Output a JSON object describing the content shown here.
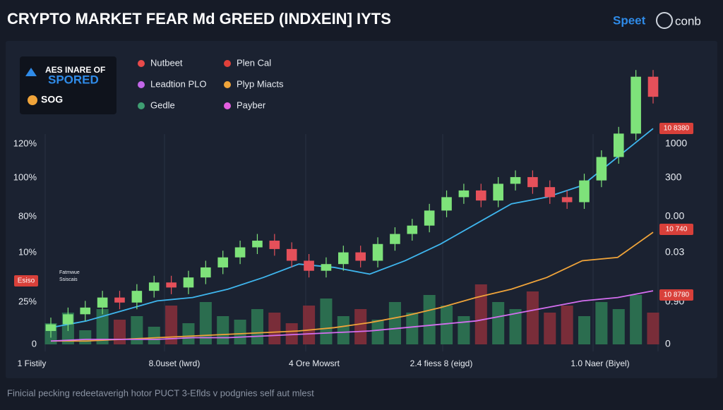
{
  "chart_data": {
    "type": "candlestick",
    "title": "CRYPTO MARKET FEAR Md GREED (INDXEIN] IYTS",
    "logo": [
      "Speet",
      "conb"
    ],
    "badge_panel": [
      "AES INARE OF",
      "SPORED",
      "SOG"
    ],
    "legend": [
      {
        "name": "Nutbeet",
        "color": "#e84a4a"
      },
      {
        "name": "Plen Cal",
        "color": "#e0403a"
      },
      {
        "name": "Leadtion PLO",
        "color": "#c266e8"
      },
      {
        "name": "Plyp Miacts",
        "color": "#f0a43a"
      },
      {
        "name": "Gedle",
        "color": "#3f9e72"
      },
      {
        "name": "Payber",
        "color": "#e45ee0"
      }
    ],
    "left_axis_labels": [
      "120%",
      "100%",
      "80%",
      "10%",
      "25%",
      "0"
    ],
    "right_axis_labels": [
      "1000",
      "300",
      "0.00",
      "0.03",
      "0.90",
      "0"
    ],
    "tags": [
      "Esiso",
      "10 8380",
      "10 740",
      "10 8780"
    ],
    "ticker_note": [
      "Fatmwue",
      "Ssiscais"
    ],
    "x_labels": [
      "1 Fistily",
      "8.0uset (lwrd)",
      "4 Ore Mowsrt",
      "2.4 fiess 8 (eigd)",
      "1.0 Naer (Biyel)"
    ],
    "footer": "Finicial pecking redeetaverigh hotor PUCT 3-Eflds v podgnies self aut mlest",
    "ylim": [
      0,
      170
    ],
    "volume_ylim": [
      0,
      100
    ],
    "up_color": "#7ee27a",
    "down_color": "#e5505a",
    "open": [
      8,
      12,
      18,
      22,
      28,
      25,
      32,
      37,
      34,
      40,
      46,
      52,
      58,
      62,
      57,
      50,
      44,
      48,
      55,
      50,
      60,
      66,
      71,
      80,
      88,
      92,
      86,
      96,
      100,
      94,
      88,
      85,
      98,
      112,
      126,
      160
    ],
    "high": [
      16,
      22,
      26,
      32,
      32,
      36,
      41,
      41,
      44,
      50,
      56,
      62,
      66,
      66,
      61,
      54,
      52,
      59,
      59,
      64,
      70,
      75,
      84,
      92,
      96,
      96,
      100,
      104,
      104,
      98,
      92,
      102,
      116,
      130,
      164,
      164
    ],
    "low": [
      4,
      8,
      14,
      18,
      21,
      21,
      28,
      30,
      30,
      36,
      42,
      48,
      54,
      53,
      46,
      40,
      40,
      44,
      46,
      46,
      56,
      62,
      67,
      76,
      84,
      82,
      82,
      92,
      90,
      84,
      81,
      81,
      94,
      108,
      122,
      144
    ],
    "close": [
      12,
      18,
      22,
      28,
      25,
      32,
      37,
      34,
      40,
      46,
      52,
      58,
      62,
      57,
      50,
      44,
      48,
      55,
      50,
      60,
      66,
      71,
      80,
      88,
      92,
      86,
      96,
      100,
      94,
      88,
      85,
      98,
      112,
      126,
      160,
      148
    ],
    "volume": [
      30,
      45,
      20,
      50,
      35,
      40,
      25,
      55,
      30,
      60,
      40,
      35,
      50,
      45,
      30,
      55,
      65,
      40,
      50,
      35,
      60,
      45,
      70,
      55,
      40,
      85,
      60,
      50,
      75,
      45,
      55,
      40,
      60,
      50,
      70,
      45
    ],
    "series": [
      {
        "color": "#3fb6ee",
        "values": [
          10,
          14,
          20,
          26,
          28,
          33,
          40,
          48,
          46,
          42,
          50,
          60,
          72,
          84,
          88,
          95,
          112,
          129
        ]
      },
      {
        "color": "#f0a43a",
        "values": [
          2,
          2,
          3,
          4,
          5,
          6,
          7,
          8,
          10,
          13,
          17,
          22,
          28,
          33,
          40,
          50,
          52,
          67
        ]
      },
      {
        "color": "#d46ef0",
        "values": [
          2,
          3,
          3,
          3,
          4,
          4,
          5,
          6,
          7,
          8,
          10,
          12,
          14,
          18,
          22,
          26,
          28,
          32
        ]
      }
    ]
  }
}
